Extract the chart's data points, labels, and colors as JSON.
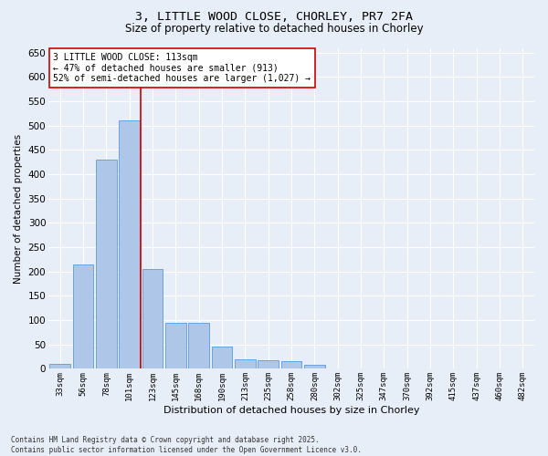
{
  "title1": "3, LITTLE WOOD CLOSE, CHORLEY, PR7 2FA",
  "title2": "Size of property relative to detached houses in Chorley",
  "xlabel": "Distribution of detached houses by size in Chorley",
  "ylabel": "Number of detached properties",
  "bar_labels": [
    "33sqm",
    "56sqm",
    "78sqm",
    "101sqm",
    "123sqm",
    "145sqm",
    "168sqm",
    "190sqm",
    "213sqm",
    "235sqm",
    "258sqm",
    "280sqm",
    "302sqm",
    "325sqm",
    "347sqm",
    "370sqm",
    "392sqm",
    "415sqm",
    "437sqm",
    "460sqm",
    "482sqm"
  ],
  "bar_values": [
    10,
    215,
    430,
    510,
    205,
    95,
    95,
    45,
    20,
    18,
    16,
    8,
    1,
    0,
    0,
    0,
    0,
    0,
    0,
    0,
    1
  ],
  "bar_color": "#aec6e8",
  "bar_edgecolor": "#5b9bd5",
  "bg_color": "#e8eef7",
  "grid_color": "#ffffff",
  "annotation_text": "3 LITTLE WOOD CLOSE: 113sqm\n← 47% of detached houses are smaller (913)\n52% of semi-detached houses are larger (1,027) →",
  "annotation_boxcolor": "#ffffff",
  "annotation_edgecolor": "#cc0000",
  "redline_color": "#cc0000",
  "redline_x": 3.5,
  "ylim": [
    0,
    660
  ],
  "yticks": [
    0,
    50,
    100,
    150,
    200,
    250,
    300,
    350,
    400,
    450,
    500,
    550,
    600,
    650
  ],
  "footer": "Contains HM Land Registry data © Crown copyright and database right 2025.\nContains public sector information licensed under the Open Government Licence v3.0.",
  "title_fontsize": 9.5,
  "subtitle_fontsize": 8.5,
  "annotation_fontsize": 7.0,
  "ylabel_fontsize": 7.5,
  "xlabel_fontsize": 8.0,
  "ytick_fontsize": 7.5,
  "xtick_fontsize": 6.5,
  "footer_fontsize": 5.5
}
